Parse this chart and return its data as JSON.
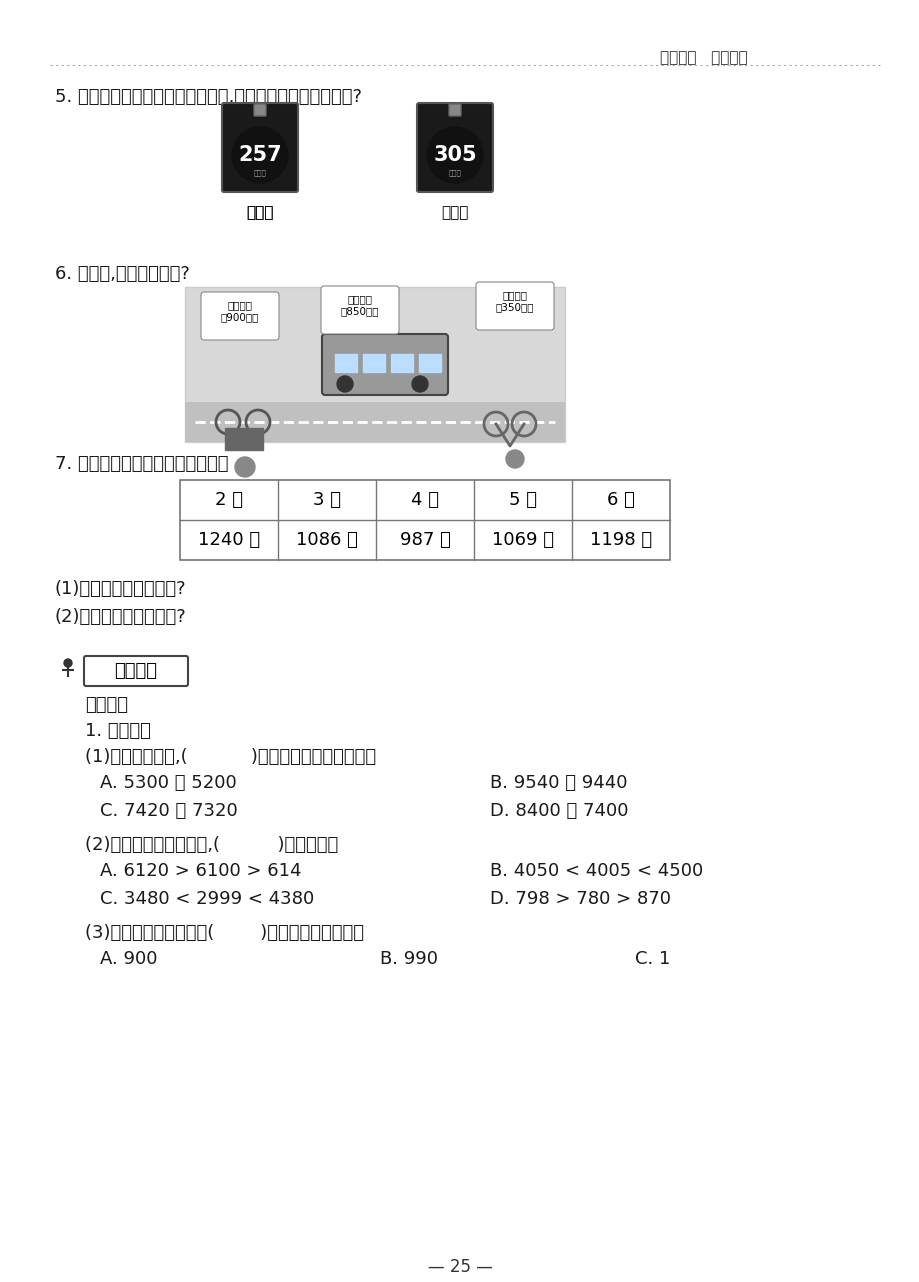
{
  "header_text": "第二单元   游览北京",
  "q5_text": "5. 下面是王丽家和小红家的用电量,请问谁家用电更节约一些?",
  "q5_left_label": "257",
  "q5_right_label": "305",
  "q5_left_name": "王丽家",
  "q5_right_name": "小红家",
  "q6_text": "6. 比一比,谁的速度最快?",
  "q6_speech1": "我每分钟\n行900米。",
  "q6_speech2": "我每分钟\n行850米。",
  "q6_speech3": "我每分钟\n行350米。",
  "q7_text": "7. 新星电脑专卖店销售情况如下。",
  "table_headers": [
    "2 月",
    "3 月",
    "4 月",
    "5 月",
    "6 月"
  ],
  "table_values": [
    "1240 台",
    "1086 台",
    "987 台",
    "1069 台",
    "1198 台"
  ],
  "q7_sub1": "(1)哪个月的销售量最多?",
  "q7_sub2": "(2)你还能提出什么问题?",
  "section_title": "课后作业",
  "basic_title": "基础训练",
  "ex1_title": "1. 选择题。",
  "ex1_q1": "(1)下面四组数中,(           )的关系与其余三组不同。",
  "ex1_q1_A": "A. 5300 与 5200",
  "ex1_q1_B": "B. 9540 与 9440",
  "ex1_q1_C": "C. 7420 与 7320",
  "ex1_q1_D": "D. 8400 与 7400",
  "ex1_q2": "(2)下列各组数的排列中,(          )是正确的。",
  "ex1_q2_A": "A. 6120 > 6100 > 614",
  "ex1_q2_B": "B. 4050 < 4005 < 4500",
  "ex1_q2_C": "C. 3480 < 2999 < 4380",
  "ex1_q2_D": "D. 798 > 780 > 870",
  "ex1_q3": "(3)最大的三位数再加上(        )就是最小的四位数。",
  "ex1_q3_A": "A. 900",
  "ex1_q3_B": "B. 990",
  "ex1_q3_C": "C. 1",
  "page_number": "— 25 —",
  "bg_color": "#ffffff",
  "text_color": "#1a1a1a",
  "header_color": "#333333",
  "table_line_color": "#777777",
  "dotted_line_color": "#aaaaaa"
}
